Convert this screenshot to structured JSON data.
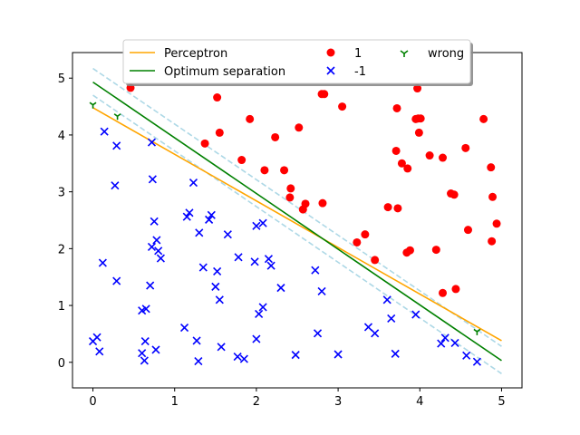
{
  "chart_data": {
    "type": "scatter",
    "title": "",
    "xlabel": "",
    "ylabel": "",
    "xlim": [
      -0.25,
      5.25
    ],
    "ylim": [
      -0.45,
      5.45
    ],
    "x_ticks": [
      0,
      1,
      2,
      3,
      4,
      5
    ],
    "y_ticks": [
      0,
      1,
      2,
      3,
      4,
      5
    ],
    "grid": false,
    "legend_placement": "top-center",
    "colors": {
      "perceptron": "#ffa500",
      "optimum": "#008000",
      "margin": "#add8e6",
      "positive": "#ff0000",
      "negative": "#0000ff",
      "wrong": "#008000"
    },
    "legend": {
      "perceptron": "Perceptron",
      "optimum": "Optimum separation",
      "positive": "1",
      "negative": "-1",
      "wrong": "wrong"
    },
    "lines": {
      "perceptron": [
        [
          0,
          4.48
        ],
        [
          5,
          0.38
        ]
      ],
      "optimum": [
        [
          0,
          4.93
        ],
        [
          5,
          0.03
        ]
      ],
      "margin_upper": [
        [
          0,
          5.17
        ],
        [
          5,
          0.28
        ]
      ],
      "margin_lower": [
        [
          0,
          4.7
        ],
        [
          5,
          -0.2
        ]
      ]
    },
    "positive_points": [
      [
        0.46,
        4.83
      ],
      [
        1.52,
        4.66
      ],
      [
        1.55,
        4.04
      ],
      [
        1.37,
        3.85
      ],
      [
        1.92,
        4.28
      ],
      [
        2.23,
        3.96
      ],
      [
        1.82,
        3.56
      ],
      [
        2.1,
        3.38
      ],
      [
        2.34,
        3.38
      ],
      [
        2.52,
        4.13
      ],
      [
        2.8,
        4.72
      ],
      [
        2.83,
        4.72
      ],
      [
        3.05,
        4.5
      ],
      [
        2.41,
        2.9
      ],
      [
        2.42,
        3.06
      ],
      [
        2.6,
        2.79
      ],
      [
        2.57,
        2.69
      ],
      [
        2.81,
        2.8
      ],
      [
        3.23,
        2.11
      ],
      [
        3.33,
        2.25
      ],
      [
        3.45,
        1.8
      ],
      [
        3.61,
        2.73
      ],
      [
        3.73,
        2.71
      ],
      [
        3.71,
        3.72
      ],
      [
        3.72,
        4.47
      ],
      [
        3.78,
        3.5
      ],
      [
        3.85,
        3.41
      ],
      [
        3.84,
        1.93
      ],
      [
        3.88,
        1.97
      ],
      [
        3.95,
        4.28
      ],
      [
        3.98,
        4.29
      ],
      [
        4.01,
        4.29
      ],
      [
        3.97,
        4.82
      ],
      [
        3.99,
        4.04
      ],
      [
        4.12,
        3.64
      ],
      [
        4.2,
        1.98
      ],
      [
        4.28,
        1.22
      ],
      [
        4.28,
        3.6
      ],
      [
        4.38,
        2.97
      ],
      [
        4.42,
        2.95
      ],
      [
        4.44,
        1.29
      ],
      [
        4.56,
        3.77
      ],
      [
        4.59,
        2.33
      ],
      [
        4.78,
        4.28
      ],
      [
        4.87,
        3.43
      ],
      [
        4.88,
        2.13
      ],
      [
        4.89,
        2.91
      ],
      [
        4.94,
        2.44
      ]
    ],
    "negative_points": [
      [
        0.14,
        4.06
      ],
      [
        0.29,
        3.81
      ],
      [
        0.27,
        3.11
      ],
      [
        0.72,
        3.87
      ],
      [
        0.73,
        3.22
      ],
      [
        1.23,
        3.16
      ],
      [
        0.12,
        1.75
      ],
      [
        0.29,
        1.43
      ],
      [
        0.75,
        2.48
      ],
      [
        0.72,
        2.03
      ],
      [
        0.78,
        2.15
      ],
      [
        0.8,
        1.96
      ],
      [
        0.83,
        1.83
      ],
      [
        1.15,
        2.56
      ],
      [
        1.18,
        2.63
      ],
      [
        1.3,
        2.28
      ],
      [
        1.42,
        2.51
      ],
      [
        1.45,
        2.59
      ],
      [
        1.65,
        2.25
      ],
      [
        1.35,
        1.67
      ],
      [
        1.52,
        1.6
      ],
      [
        1.5,
        1.33
      ],
      [
        1.55,
        1.1
      ],
      [
        0.7,
        1.35
      ],
      [
        0.6,
        0.91
      ],
      [
        0.65,
        0.94
      ],
      [
        1.12,
        0.61
      ],
      [
        1.27,
        0.38
      ],
      [
        1.57,
        0.27
      ],
      [
        1.78,
        1.85
      ],
      [
        1.98,
        1.77
      ],
      [
        2.0,
        2.4
      ],
      [
        2.08,
        2.45
      ],
      [
        2.15,
        1.82
      ],
      [
        2.18,
        1.7
      ],
      [
        2.3,
        1.31
      ],
      [
        2.03,
        0.85
      ],
      [
        2.08,
        0.97
      ],
      [
        2.0,
        0.41
      ],
      [
        1.77,
        0.1
      ],
      [
        1.85,
        0.06
      ],
      [
        2.48,
        0.13
      ],
      [
        2.72,
        1.62
      ],
      [
        2.8,
        1.25
      ],
      [
        2.75,
        0.51
      ],
      [
        3.0,
        0.14
      ],
      [
        3.37,
        0.62
      ],
      [
        3.45,
        0.51
      ],
      [
        3.6,
        1.1
      ],
      [
        3.65,
        0.77
      ],
      [
        3.7,
        0.15
      ],
      [
        3.95,
        0.84
      ],
      [
        4.26,
        0.33
      ],
      [
        4.31,
        0.43
      ],
      [
        4.43,
        0.34
      ],
      [
        4.57,
        0.12
      ],
      [
        4.7,
        0.01
      ],
      [
        0.0,
        0.37
      ],
      [
        0.05,
        0.44
      ],
      [
        0.08,
        0.19
      ],
      [
        0.6,
        0.16
      ],
      [
        0.64,
        0.37
      ],
      [
        0.63,
        0.03
      ],
      [
        0.77,
        0.22
      ],
      [
        1.29,
        0.02
      ]
    ],
    "wrong_points": [
      [
        0.0,
        4.53
      ],
      [
        0.3,
        4.33
      ],
      [
        4.7,
        0.54
      ]
    ]
  }
}
